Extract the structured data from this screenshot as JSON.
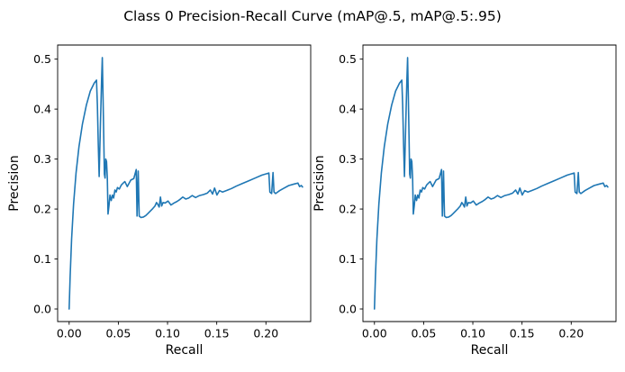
{
  "figure": {
    "title": "Class 0 Precision-Recall Curve (mAP@.5, mAP@.5:.95)",
    "background_color": "#ffffff"
  },
  "chart_data": {
    "type": "line",
    "title": "Class 0 Precision-Recall Curve (mAP@.5, mAP@.5:.95)",
    "subplot_count": 2,
    "subplots_identical": true,
    "subplots": [
      {
        "name": "left",
        "xlabel": "Recall",
        "ylabel": "Precision"
      },
      {
        "name": "right",
        "xlabel": "Recall",
        "ylabel": "Precision"
      }
    ],
    "xlabel": "Recall",
    "ylabel": "Precision",
    "xticks": [
      0.0,
      0.05,
      0.1,
      0.15,
      0.2
    ],
    "xtick_labels": [
      "0.00",
      "0.05",
      "0.10",
      "0.15",
      "0.20"
    ],
    "yticks": [
      0.0,
      0.1,
      0.2,
      0.3,
      0.4,
      0.5
    ],
    "ytick_labels": [
      "0.0",
      "0.1",
      "0.2",
      "0.3",
      "0.4",
      "0.5"
    ],
    "xlim": [
      -0.0117,
      0.2455
    ],
    "ylim": [
      -0.0252,
      0.5282
    ],
    "grid": false,
    "legend": null,
    "line_color": "#1f77b4",
    "x": [
      0.0,
      0.001,
      0.0025,
      0.0045,
      0.007,
      0.01,
      0.0135,
      0.0175,
      0.0215,
      0.0255,
      0.0278,
      0.0287,
      0.0296,
      0.0305,
      0.0318,
      0.033,
      0.0337,
      0.0344,
      0.0352,
      0.0358,
      0.0365,
      0.0372,
      0.038,
      0.0388,
      0.0395,
      0.0405,
      0.0415,
      0.0428,
      0.044,
      0.0452,
      0.0465,
      0.0478,
      0.0491,
      0.051,
      0.053,
      0.055,
      0.0566,
      0.0591,
      0.061,
      0.0627,
      0.0657,
      0.0682,
      0.069,
      0.0702,
      0.0712,
      0.073,
      0.0755,
      0.0779,
      0.08,
      0.0825,
      0.085,
      0.0872,
      0.0888,
      0.0902,
      0.0915,
      0.0928,
      0.094,
      0.0955,
      0.0975,
      0.1005,
      0.1035,
      0.1065,
      0.1095,
      0.1125,
      0.1155,
      0.1185,
      0.1215,
      0.125,
      0.1285,
      0.1325,
      0.1365,
      0.1405,
      0.1435,
      0.1458,
      0.1478,
      0.1502,
      0.1528,
      0.1558,
      0.16,
      0.165,
      0.17,
      0.176,
      0.182,
      0.189,
      0.196,
      0.203,
      0.204,
      0.2058,
      0.2072,
      0.2082,
      0.2098,
      0.214,
      0.2185,
      0.2232,
      0.2287,
      0.2325,
      0.2342,
      0.236,
      0.2372
    ],
    "y": [
      0.0,
      0.065,
      0.14,
      0.21,
      0.272,
      0.325,
      0.37,
      0.408,
      0.436,
      0.452,
      0.458,
      0.408,
      0.33,
      0.265,
      0.37,
      0.46,
      0.503,
      0.43,
      0.34,
      0.27,
      0.262,
      0.3,
      0.295,
      0.262,
      0.19,
      0.207,
      0.228,
      0.217,
      0.228,
      0.222,
      0.238,
      0.234,
      0.243,
      0.24,
      0.248,
      0.252,
      0.255,
      0.245,
      0.252,
      0.258,
      0.261,
      0.279,
      0.186,
      0.276,
      0.186,
      0.183,
      0.184,
      0.187,
      0.191,
      0.196,
      0.201,
      0.206,
      0.213,
      0.209,
      0.204,
      0.224,
      0.206,
      0.213,
      0.212,
      0.216,
      0.208,
      0.212,
      0.215,
      0.219,
      0.224,
      0.22,
      0.222,
      0.227,
      0.223,
      0.227,
      0.229,
      0.232,
      0.238,
      0.23,
      0.242,
      0.228,
      0.237,
      0.234,
      0.237,
      0.241,
      0.246,
      0.251,
      0.256,
      0.262,
      0.268,
      0.272,
      0.234,
      0.231,
      0.273,
      0.234,
      0.231,
      0.237,
      0.242,
      0.247,
      0.25,
      0.252,
      0.245,
      0.247,
      0.244
    ]
  }
}
